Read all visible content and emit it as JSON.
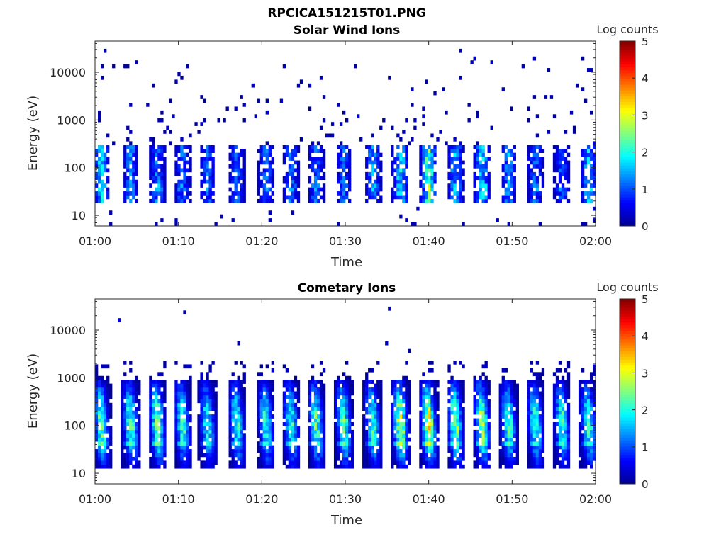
{
  "figure_title": "RPCICA151215T01.PNG",
  "colormap": [
    "#00008f",
    "#0000ff",
    "#0080ff",
    "#00ffff",
    "#80ff80",
    "#ffff00",
    "#ff8000",
    "#ff0000",
    "#800000"
  ],
  "chart_data": [
    {
      "type": "heatmap",
      "title": "Solar Wind Ions",
      "xlabel": "Time",
      "ylabel": "Energy (eV)",
      "x_ticks": [
        "01:00",
        "01:10",
        "01:20",
        "01:30",
        "01:40",
        "01:50",
        "02:00"
      ],
      "x_range": [
        "01:00",
        "02:00"
      ],
      "y_scale": "log",
      "y_range": [
        6,
        45000
      ],
      "y_ticks": [
        10,
        100,
        1000,
        10000
      ],
      "y_tick_labels": [
        "10",
        "100",
        "1000",
        "10000"
      ],
      "colorbar": {
        "label": "Log counts",
        "range": [
          0,
          5
        ],
        "ticks": [
          "0",
          "1",
          "2",
          "3",
          "4",
          "5"
        ]
      },
      "bursts": [
        {
          "t": 0.8,
          "log_counts": 1.9
        },
        {
          "t": 4.3,
          "log_counts": 1.4
        },
        {
          "t": 7.5,
          "log_counts": 1.4
        },
        {
          "t": 10.5,
          "log_counts": 1.3
        },
        {
          "t": 13.5,
          "log_counts": 1.3
        },
        {
          "t": 17.0,
          "log_counts": 1.2
        },
        {
          "t": 20.5,
          "log_counts": 1.3
        },
        {
          "t": 23.5,
          "log_counts": 1.3
        },
        {
          "t": 26.5,
          "log_counts": 1.3
        },
        {
          "t": 29.8,
          "log_counts": 1.4
        },
        {
          "t": 33.3,
          "log_counts": 1.6
        },
        {
          "t": 36.6,
          "log_counts": 2.0
        },
        {
          "t": 40.0,
          "log_counts": 2.6
        },
        {
          "t": 43.2,
          "log_counts": 1.7
        },
        {
          "t": 46.4,
          "log_counts": 2.0
        },
        {
          "t": 49.6,
          "log_counts": 1.6
        },
        {
          "t": 52.8,
          "log_counts": 1.3
        },
        {
          "t": 56.0,
          "log_counts": 1.3
        },
        {
          "t": 59.2,
          "log_counts": 1.8
        }
      ]
    },
    {
      "type": "heatmap",
      "title": "Cometary Ions",
      "xlabel": "Time",
      "ylabel": "Energy (eV)",
      "x_ticks": [
        "01:00",
        "01:10",
        "01:20",
        "01:30",
        "01:40",
        "01:50",
        "02:00"
      ],
      "x_range": [
        "01:00",
        "02:00"
      ],
      "y_scale": "log",
      "y_range": [
        6,
        45000
      ],
      "y_ticks": [
        10,
        100,
        1000,
        10000
      ],
      "y_tick_labels": [
        "10",
        "100",
        "1000",
        "10000"
      ],
      "colorbar": {
        "label": "Log counts",
        "range": [
          0,
          5
        ],
        "ticks": [
          "0",
          "1",
          "2",
          "3",
          "4",
          "5"
        ]
      },
      "bursts": [
        {
          "t": 0.8,
          "log_counts": 2.8
        },
        {
          "t": 4.3,
          "log_counts": 2.6
        },
        {
          "t": 7.5,
          "log_counts": 2.9
        },
        {
          "t": 10.5,
          "log_counts": 2.5
        },
        {
          "t": 13.5,
          "log_counts": 2.3
        },
        {
          "t": 17.0,
          "log_counts": 2.4
        },
        {
          "t": 20.5,
          "log_counts": 2.4
        },
        {
          "t": 23.5,
          "log_counts": 2.5
        },
        {
          "t": 26.5,
          "log_counts": 2.6
        },
        {
          "t": 29.8,
          "log_counts": 2.7
        },
        {
          "t": 33.3,
          "log_counts": 2.5
        },
        {
          "t": 36.6,
          "log_counts": 3.3
        },
        {
          "t": 40.0,
          "log_counts": 3.5
        },
        {
          "t": 43.2,
          "log_counts": 3.0
        },
        {
          "t": 46.4,
          "log_counts": 3.0
        },
        {
          "t": 49.6,
          "log_counts": 2.6
        },
        {
          "t": 52.8,
          "log_counts": 2.4
        },
        {
          "t": 56.0,
          "log_counts": 2.5
        },
        {
          "t": 59.2,
          "log_counts": 2.4
        }
      ]
    }
  ]
}
